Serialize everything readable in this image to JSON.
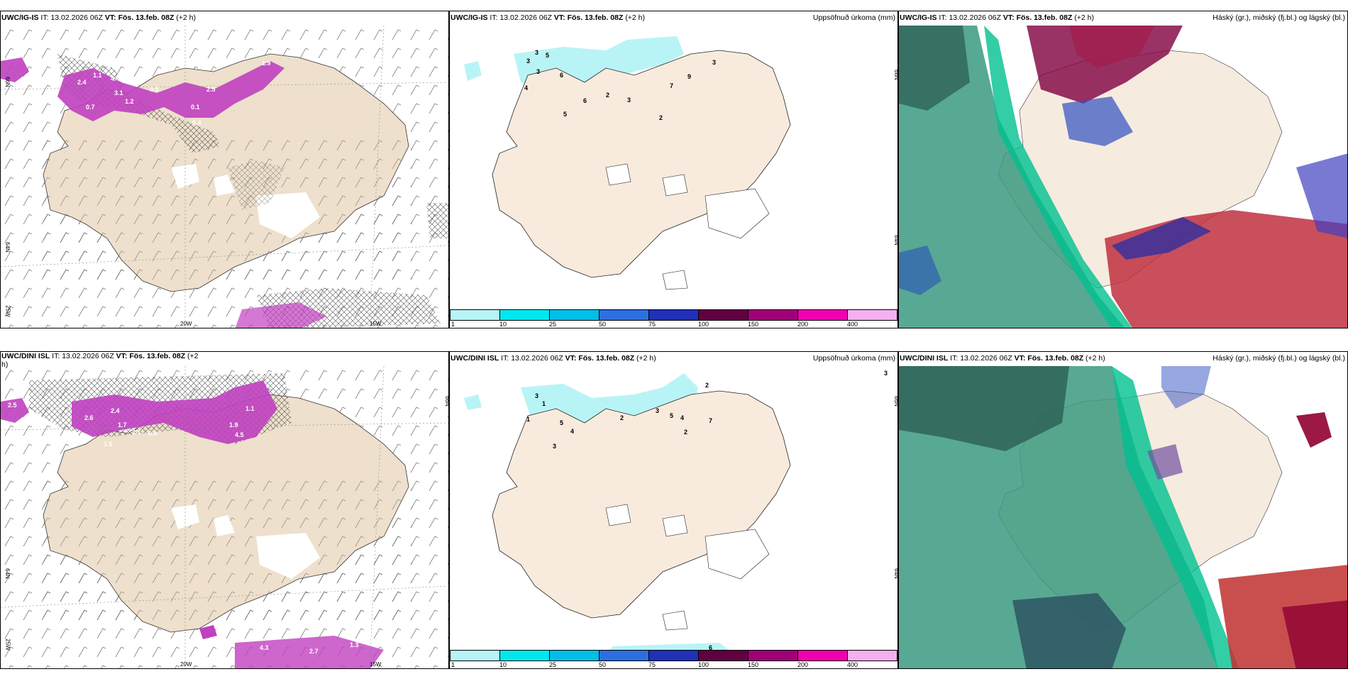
{
  "panels": {
    "top_left": {
      "model": "UWC/IG-IS",
      "it_label": "IT:",
      "it_value": "13.02.2026 06Z",
      "vt_label": "VT:",
      "vt_value": "Fös. 13.feb. 08Z",
      "lead": "(+2 h)"
    },
    "top_mid": {
      "model": "UWC/IG-IS",
      "it_label": "IT:",
      "it_value": "13.02.2026 06Z",
      "vt_label": "VT:",
      "vt_value": "Fös. 13.feb. 08Z",
      "lead": "(+2 h)",
      "right_title": "Uppsöfnuð úrkoma (mm)"
    },
    "top_right": {
      "model": "UWC/IG-IS",
      "it_label": "IT:",
      "it_value": "13.02.2026 06Z",
      "vt_label": "VT:",
      "vt_value": "Fös. 13.feb. 08Z",
      "lead": "(+2 h)",
      "right_title": "Háský (gr.), miðský (fj.bl.) og lágský (bl.)"
    },
    "bot_left": {
      "model": "UWC/DINI ISL",
      "it_label": "IT:",
      "it_value": "13.02.2026 06Z",
      "vt_label": "VT:",
      "vt_value": "Fös. 13.feb. 08Z",
      "lead": "(+2",
      "lead2": "h)"
    },
    "bot_mid": {
      "model": "UWC/DINI ISL",
      "it_label": "IT:",
      "it_value": "13.02.2026 06Z",
      "vt_label": "VT:",
      "vt_value": "Fös. 13.feb. 08Z",
      "lead": "(+2 h)",
      "right_title": "Uppsöfnuð úrkoma (mm)"
    },
    "bot_right": {
      "model": "UWC/DINI ISL",
      "it_label": "IT:",
      "it_value": "13.02.2026 06Z",
      "vt_label": "VT:",
      "vt_value": "Fös. 13.feb. 08Z",
      "lead": "(+2 h)",
      "right_title": "Háský (gr.), miðský (fj.bl.) og lágský (bl.)"
    }
  },
  "axis_labels": {
    "lat66": "66N",
    "lat64": "64N",
    "lon25": "25W",
    "lon20": "20W",
    "lon15": "15W"
  },
  "legend": {
    "labels": [
      "1",
      "10",
      "25",
      "50",
      "75",
      "100",
      "150",
      "200",
      "400"
    ],
    "colors": [
      "#b8f4f6",
      "#00e8ef",
      "#00bfe8",
      "#2c6fe0",
      "#2030b8",
      "#600040",
      "#a00078",
      "#f000b0",
      "#f4b0f0"
    ]
  },
  "precip_labels_top": [
    "3",
    "3",
    "5",
    "3",
    "4",
    "6",
    "6",
    "5",
    "2",
    "3",
    "7",
    "9",
    "2",
    "3"
  ],
  "precip_labels_bot": [
    "3",
    "2",
    "1",
    "1",
    "5",
    "4",
    "2",
    "3",
    "3",
    "5",
    "4",
    "2",
    "7",
    "3",
    "6"
  ],
  "snow_labels_top": [
    "0.4",
    "2.4",
    "1.1",
    "4.4",
    "3.1",
    "1.2",
    "0.5",
    "2.5",
    "0.1",
    "0.4",
    "0.7",
    "1.9"
  ],
  "snow_labels_bot": [
    "2.5",
    "2.6",
    "2.4",
    "1.7",
    "2.1",
    "0.9",
    "1.9",
    "4.5",
    "1.5",
    "0.9",
    "1.1",
    "4.3",
    "2.7",
    "1.3"
  ],
  "colors": {
    "land": "#f6ece0",
    "cyan": "#b8f4f6",
    "magenta": "#d040d0",
    "teal": "#3a9a80"
  }
}
